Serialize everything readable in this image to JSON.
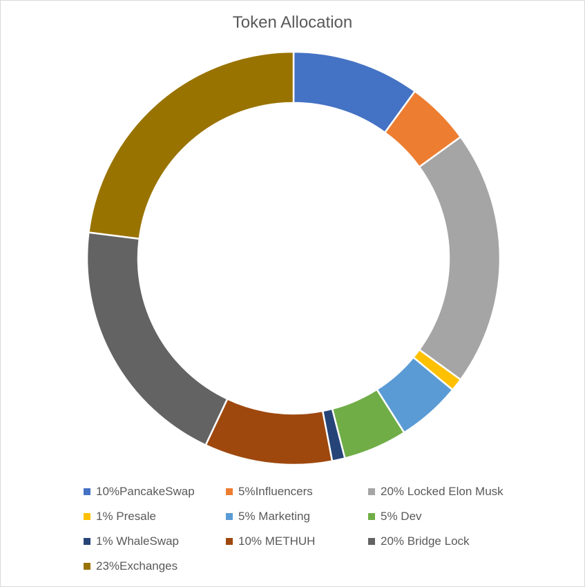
{
  "chart_data": {
    "type": "pie",
    "title": "Token Allocation",
    "donut": true,
    "legend_position": "bottom",
    "categories": [
      "10%PancakeSwap",
      "5%Influencers",
      "20% Locked Elon Musk",
      "1% Presale",
      "5% Marketing",
      "5% Dev",
      "1% WhaleSwap",
      "10% METHUH",
      "20% Bridge Lock",
      "23%Exchanges"
    ],
    "values": [
      10,
      5,
      20,
      1,
      5,
      5,
      1,
      10,
      20,
      23
    ],
    "colors": [
      "#4472C4",
      "#ED7D31",
      "#A5A5A5",
      "#FFC000",
      "#5B9BD5",
      "#70AD47",
      "#264478",
      "#9E480E",
      "#636363",
      "#997300"
    ]
  }
}
